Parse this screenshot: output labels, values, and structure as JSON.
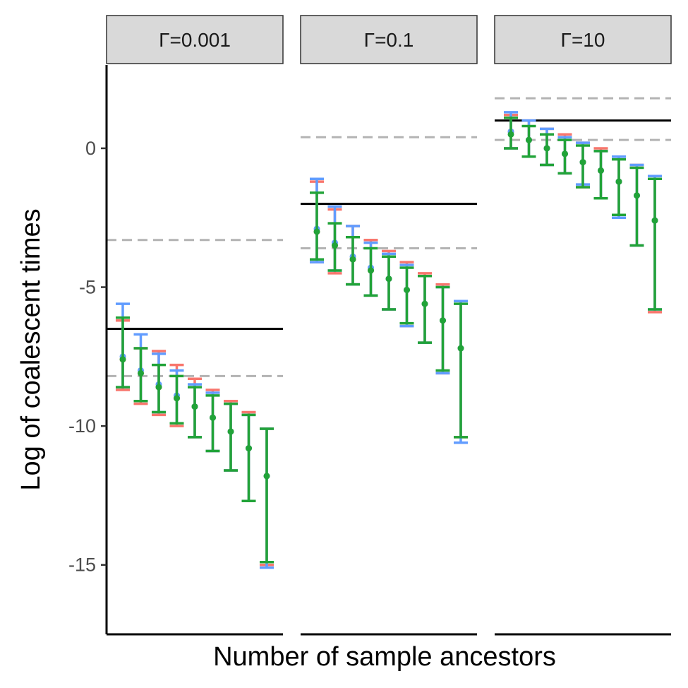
{
  "chart_data": {
    "type": "errorbar",
    "xlabel": "Number of sample ancestors",
    "ylabel": "Log of coalescent times",
    "ylim": [
      -17.5,
      3.0
    ],
    "yticks": [
      0,
      -5,
      -10,
      -15
    ],
    "ytick_labels": [
      "0",
      "-5",
      "-10",
      "-15"
    ],
    "x_tick_labels_shown": false,
    "grid": false,
    "legend": "none",
    "colors": {
      "red_series": "#F8766D",
      "blue_series": "#619CFF",
      "green_series": "#21A338",
      "reference_line": "#000000",
      "dashed_line": "#B3B3B3",
      "strip_fill": "#D9D9D9"
    },
    "panels": [
      {
        "label": "Γ=0.001",
        "solid_line": -6.5,
        "dashed_lines": [
          -3.3,
          -8.2
        ],
        "series": [
          {
            "color_key": "red_series",
            "points": [
              {
                "x": 1,
                "mid": -7.6,
                "lo": -8.7,
                "hi": -6.2
              },
              {
                "x": 2,
                "mid": -8.1,
                "lo": -9.2,
                "hi": -7.2
              },
              {
                "x": 3,
                "mid": -8.6,
                "lo": -9.6,
                "hi": -7.3
              },
              {
                "x": 4,
                "mid": -9.0,
                "lo": -10.0,
                "hi": -7.8
              },
              {
                "x": 5,
                "mid": -9.3,
                "lo": -10.4,
                "hi": -8.3
              },
              {
                "x": 6,
                "mid": -9.7,
                "lo": -10.9,
                "hi": -8.7
              },
              {
                "x": 7,
                "mid": -10.2,
                "lo": -11.6,
                "hi": -9.1
              },
              {
                "x": 8,
                "mid": -10.8,
                "lo": -12.7,
                "hi": -9.5
              },
              {
                "x": 9,
                "mid": -11.8,
                "lo": -15.0,
                "hi": -10.1
              }
            ]
          },
          {
            "color_key": "blue_series",
            "points": [
              {
                "x": 1,
                "mid": -7.5,
                "lo": -8.6,
                "hi": -5.6
              },
              {
                "x": 2,
                "mid": -8.0,
                "lo": -9.1,
                "hi": -6.7
              },
              {
                "x": 3,
                "mid": -8.5,
                "lo": -9.5,
                "hi": -7.4
              },
              {
                "x": 4,
                "mid": -8.9,
                "lo": -9.9,
                "hi": -8.0
              },
              {
                "x": 5,
                "mid": -9.3,
                "lo": -10.4,
                "hi": -8.5
              },
              {
                "x": 6,
                "mid": -9.7,
                "lo": -10.9,
                "hi": -8.8
              },
              {
                "x": 7,
                "mid": -10.2,
                "lo": -11.6,
                "hi": -9.2
              },
              {
                "x": 8,
                "mid": -10.8,
                "lo": -12.7,
                "hi": -9.6
              },
              {
                "x": 9,
                "mid": -11.8,
                "lo": -15.1,
                "hi": -10.1
              }
            ]
          },
          {
            "color_key": "green_series",
            "points": [
              {
                "x": 1,
                "mid": -7.6,
                "lo": -8.6,
                "hi": -6.1
              },
              {
                "x": 2,
                "mid": -8.1,
                "lo": -9.1,
                "hi": -7.2
              },
              {
                "x": 3,
                "mid": -8.6,
                "lo": -9.5,
                "hi": -7.8
              },
              {
                "x": 4,
                "mid": -9.0,
                "lo": -9.9,
                "hi": -8.2
              },
              {
                "x": 5,
                "mid": -9.3,
                "lo": -10.4,
                "hi": -8.6
              },
              {
                "x": 6,
                "mid": -9.7,
                "lo": -10.9,
                "hi": -8.9
              },
              {
                "x": 7,
                "mid": -10.2,
                "lo": -11.6,
                "hi": -9.2
              },
              {
                "x": 8,
                "mid": -10.8,
                "lo": -12.7,
                "hi": -9.6
              },
              {
                "x": 9,
                "mid": -11.8,
                "lo": -14.9,
                "hi": -10.1
              }
            ]
          }
        ]
      },
      {
        "label": "Γ=0.1",
        "solid_line": -2.0,
        "dashed_lines": [
          0.4,
          -3.6
        ],
        "series": [
          {
            "color_key": "red_series",
            "points": [
              {
                "x": 1,
                "mid": -3.0,
                "lo": -4.1,
                "hi": -1.2
              },
              {
                "x": 2,
                "mid": -3.5,
                "lo": -4.5,
                "hi": -2.2
              },
              {
                "x": 3,
                "mid": -4.0,
                "lo": -4.9,
                "hi": -2.8
              },
              {
                "x": 4,
                "mid": -4.4,
                "lo": -5.3,
                "hi": -3.3
              },
              {
                "x": 5,
                "mid": -4.7,
                "lo": -5.8,
                "hi": -3.7
              },
              {
                "x": 6,
                "mid": -5.1,
                "lo": -6.4,
                "hi": -4.1
              },
              {
                "x": 7,
                "mid": -5.6,
                "lo": -7.0,
                "hi": -4.5
              },
              {
                "x": 8,
                "mid": -6.2,
                "lo": -8.1,
                "hi": -4.9
              },
              {
                "x": 9,
                "mid": -7.2,
                "lo": -10.4,
                "hi": -5.5
              }
            ]
          },
          {
            "color_key": "blue_series",
            "points": [
              {
                "x": 1,
                "mid": -2.9,
                "lo": -4.1,
                "hi": -1.1
              },
              {
                "x": 2,
                "mid": -3.4,
                "lo": -4.4,
                "hi": -2.1
              },
              {
                "x": 3,
                "mid": -3.9,
                "lo": -4.9,
                "hi": -2.8
              },
              {
                "x": 4,
                "mid": -4.3,
                "lo": -5.3,
                "hi": -3.4
              },
              {
                "x": 5,
                "mid": -4.7,
                "lo": -5.8,
                "hi": -3.8
              },
              {
                "x": 6,
                "mid": -5.1,
                "lo": -6.4,
                "hi": -4.2
              },
              {
                "x": 7,
                "mid": -5.6,
                "lo": -7.0,
                "hi": -4.6
              },
              {
                "x": 8,
                "mid": -6.2,
                "lo": -8.1,
                "hi": -5.0
              },
              {
                "x": 9,
                "mid": -7.2,
                "lo": -10.6,
                "hi": -5.5
              }
            ]
          },
          {
            "color_key": "green_series",
            "points": [
              {
                "x": 1,
                "mid": -3.0,
                "lo": -4.0,
                "hi": -1.6
              },
              {
                "x": 2,
                "mid": -3.5,
                "lo": -4.4,
                "hi": -2.7
              },
              {
                "x": 3,
                "mid": -4.0,
                "lo": -4.9,
                "hi": -3.2
              },
              {
                "x": 4,
                "mid": -4.4,
                "lo": -5.3,
                "hi": -3.6
              },
              {
                "x": 5,
                "mid": -4.7,
                "lo": -5.8,
                "hi": -3.9
              },
              {
                "x": 6,
                "mid": -5.1,
                "lo": -6.3,
                "hi": -4.3
              },
              {
                "x": 7,
                "mid": -5.6,
                "lo": -7.0,
                "hi": -4.6
              },
              {
                "x": 8,
                "mid": -6.2,
                "lo": -8.0,
                "hi": -5.0
              },
              {
                "x": 9,
                "mid": -7.2,
                "lo": -10.4,
                "hi": -5.6
              }
            ]
          }
        ]
      },
      {
        "label": "Γ=10",
        "solid_line": 1.0,
        "dashed_lines": [
          1.8,
          0.3
        ],
        "series": [
          {
            "color_key": "red_series",
            "points": [
              {
                "x": 1,
                "mid": 0.6,
                "lo": 0.0,
                "hi": 1.2
              },
              {
                "x": 2,
                "mid": 0.3,
                "lo": -0.3,
                "hi": 1.0
              },
              {
                "x": 3,
                "mid": 0.0,
                "lo": -0.6,
                "hi": 0.7
              },
              {
                "x": 4,
                "mid": -0.2,
                "lo": -0.9,
                "hi": 0.5
              },
              {
                "x": 5,
                "mid": -0.5,
                "lo": -1.4,
                "hi": 0.2
              },
              {
                "x": 6,
                "mid": -0.8,
                "lo": -1.8,
                "hi": 0.0
              },
              {
                "x": 7,
                "mid": -1.2,
                "lo": -2.5,
                "hi": -0.3
              },
              {
                "x": 8,
                "mid": -1.7,
                "lo": -3.5,
                "hi": -0.6
              },
              {
                "x": 9,
                "mid": -2.6,
                "lo": -5.9,
                "hi": -1.1
              }
            ]
          },
          {
            "color_key": "blue_series",
            "points": [
              {
                "x": 1,
                "mid": 0.6,
                "lo": 0.0,
                "hi": 1.3
              },
              {
                "x": 2,
                "mid": 0.3,
                "lo": -0.3,
                "hi": 1.0
              },
              {
                "x": 3,
                "mid": 0.0,
                "lo": -0.6,
                "hi": 0.7
              },
              {
                "x": 4,
                "mid": -0.2,
                "lo": -0.9,
                "hi": 0.4
              },
              {
                "x": 5,
                "mid": -0.5,
                "lo": -1.3,
                "hi": 0.2
              },
              {
                "x": 6,
                "mid": -0.8,
                "lo": -1.8,
                "hi": -0.1
              },
              {
                "x": 7,
                "mid": -1.2,
                "lo": -2.5,
                "hi": -0.3
              },
              {
                "x": 8,
                "mid": -1.7,
                "lo": -3.5,
                "hi": -0.6
              },
              {
                "x": 9,
                "mid": -2.6,
                "lo": -5.8,
                "hi": -1.0
              }
            ]
          },
          {
            "color_key": "green_series",
            "points": [
              {
                "x": 1,
                "mid": 0.5,
                "lo": 0.0,
                "hi": 1.1
              },
              {
                "x": 2,
                "mid": 0.3,
                "lo": -0.3,
                "hi": 0.8
              },
              {
                "x": 3,
                "mid": 0.0,
                "lo": -0.6,
                "hi": 0.5
              },
              {
                "x": 4,
                "mid": -0.2,
                "lo": -0.9,
                "hi": 0.3
              },
              {
                "x": 5,
                "mid": -0.5,
                "lo": -1.4,
                "hi": 0.1
              },
              {
                "x": 6,
                "mid": -0.8,
                "lo": -1.8,
                "hi": -0.1
              },
              {
                "x": 7,
                "mid": -1.2,
                "lo": -2.4,
                "hi": -0.4
              },
              {
                "x": 8,
                "mid": -1.7,
                "lo": -3.5,
                "hi": -0.7
              },
              {
                "x": 9,
                "mid": -2.6,
                "lo": -5.8,
                "hi": -1.1
              }
            ]
          }
        ]
      }
    ]
  }
}
